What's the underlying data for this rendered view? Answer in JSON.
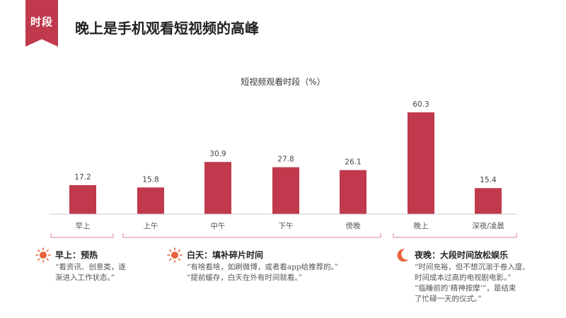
{
  "header": {
    "section_tag": "时段",
    "title": "晚上是手机观看短视频的高峰"
  },
  "colors": {
    "accent": "#c0394c",
    "sun": "#e8643c",
    "moon": "#e8643c",
    "bracket": "#d98a96"
  },
  "chart_data": {
    "type": "bar",
    "title": "短视频观看时段（%）",
    "categories": [
      "早上",
      "上午",
      "中午",
      "下午",
      "傍晚",
      "晚上",
      "深夜/凌晨"
    ],
    "values": [
      17.2,
      15.8,
      30.9,
      27.8,
      26.1,
      60.3,
      15.4
    ],
    "value_labels": [
      "17.2",
      "15.8",
      "30.9",
      "27.8",
      "26.1",
      "60.3",
      "15.4"
    ],
    "ylim": [
      0,
      60.3
    ],
    "xlabel": "",
    "ylabel": "",
    "grid": false,
    "legend": false
  },
  "notes": [
    {
      "icon": "sun-icon",
      "title": "早上：预热",
      "lines": [
        "“看资讯、创意类，逐",
        "渐进入工作状态。”"
      ]
    },
    {
      "icon": "sun-icon",
      "title": "白天：填补碎片时间",
      "lines": [
        "“有啥看啥，如刷微博，或者看app给推荐的。”",
        "“提前缓存，白天在外有时间就看。”"
      ]
    },
    {
      "icon": "moon-icon",
      "title": "夜晚：大段时间放松娱乐",
      "lines": [
        "“时间充裕，但不想沉溺于卷入度、",
        "时间成本过高的电视剧电影。”",
        "“临睡前的‘精神按摩’”，是结束",
        "了忙碌一天的仪式。”"
      ]
    }
  ]
}
